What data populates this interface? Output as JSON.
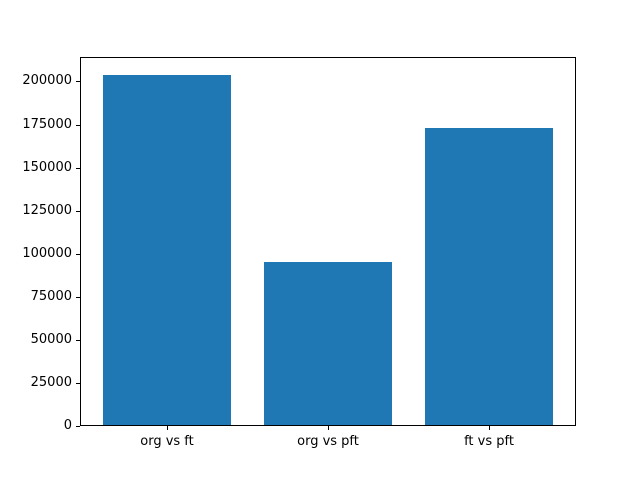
{
  "figure": {
    "background": "#ffffff"
  },
  "chart_data": {
    "type": "bar",
    "title": "",
    "xlabel": "",
    "ylabel": "",
    "categories": [
      "org vs ft",
      "org vs pft",
      "ft vs pft"
    ],
    "values": [
      204000,
      95000,
      173000
    ],
    "bar_color": "#1f77b4",
    "axis_color": "#000000",
    "text_color": "#000000",
    "yticks": [
      0,
      25000,
      50000,
      75000,
      100000,
      125000,
      150000,
      175000,
      200000
    ],
    "ytick_labels": [
      "0",
      "25000",
      "50000",
      "75000",
      "100000",
      "125000",
      "150000",
      "175000",
      "200000"
    ],
    "ylim": [
      0,
      214200
    ],
    "grid": false,
    "legend_position": "none"
  }
}
